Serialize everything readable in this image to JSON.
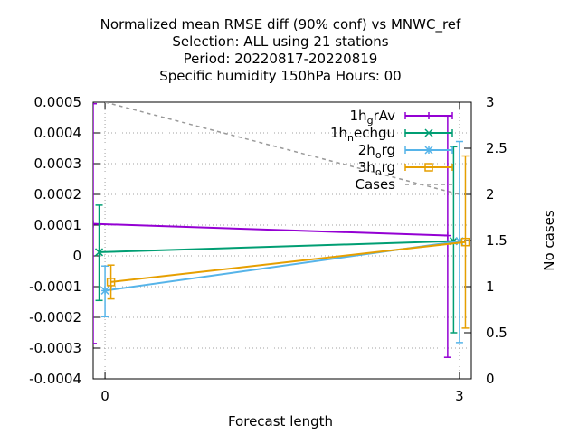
{
  "chart_data": {
    "type": "line",
    "title_lines": [
      "Normalized mean RMSE diff (90% conf) vs MNWC_ref",
      "Selection: ALL using    21 stations",
      "Period: 20220817-20220819",
      "Specific humidity 150hPa   Hours:  00"
    ],
    "xlabel": "Forecast length",
    "ylabel": "",
    "y2label": "No cases",
    "x_ticks": [
      "0",
      "3"
    ],
    "y_ticks": [
      "0.0005",
      "0.0004",
      "0.0003",
      "0.0002",
      "0.0001",
      "0",
      "-0.0001",
      "-0.0002",
      "-0.0003",
      "-0.0004"
    ],
    "y2_ticks": [
      "3",
      "2.5",
      "2",
      "1.5",
      "1",
      "0.5",
      "0"
    ],
    "xlim": [
      -0.1,
      3.1
    ],
    "ylim": [
      -0.0004,
      0.0005
    ],
    "y2lim": [
      0,
      3
    ],
    "grid": true,
    "legend_position": "top-right",
    "series": [
      {
        "name": "1h_grAv",
        "label_base": "1h",
        "label_sub": "g",
        "label_rest": "rAv",
        "color": "#9400d3",
        "marker": "plus",
        "x": [
          -0.1,
          2.9
        ],
        "y": [
          0.000104,
          6.6e-05
        ],
        "err_low": [
          -0.000285,
          -0.00033
        ],
        "err_high": [
          0.000495,
          0.000455
        ]
      },
      {
        "name": "1h_nechgu",
        "label_base": "1h",
        "label_sub": "n",
        "label_rest": "echgu",
        "color": "#009e73",
        "marker": "x",
        "x": [
          -0.05,
          2.95
        ],
        "y": [
          1.2e-05,
          4.8e-05
        ],
        "err_low": [
          -0.000145,
          -0.00025
        ],
        "err_high": [
          0.000165,
          0.000355
        ]
      },
      {
        "name": "2h_org",
        "label_base": "2h",
        "label_sub": "o",
        "label_rest": "rg",
        "color": "#56b4e9",
        "marker": "star",
        "x": [
          0.0,
          3.0
        ],
        "y": [
          -0.000113,
          4.8e-05
        ],
        "err_low": [
          -0.000198,
          -0.000282
        ],
        "err_high": [
          -3.3e-05,
          0.000372
        ]
      },
      {
        "name": "3h_org",
        "label_base": "3h",
        "label_sub": "o",
        "label_rest": "rg",
        "color": "#e69f00",
        "marker": "square",
        "x": [
          0.05,
          3.05
        ],
        "y": [
          -8.5e-05,
          4.5e-05
        ],
        "err_low": [
          -0.00014,
          -0.000235
        ],
        "err_high": [
          -3e-05,
          0.000325
        ]
      },
      {
        "name": "Cases",
        "label_base": "Cases",
        "label_sub": "",
        "label_rest": "",
        "color": "#999999",
        "marker": "none",
        "dashed": true,
        "axis": "y2",
        "x": [
          0.0,
          3.0
        ],
        "y": [
          3.0,
          2.0
        ]
      }
    ]
  }
}
